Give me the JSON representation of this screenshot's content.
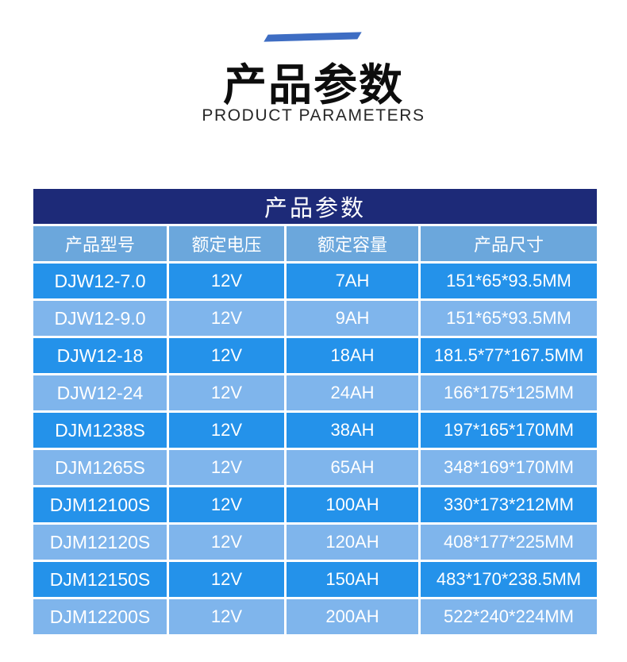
{
  "header": {
    "title": "产品参数",
    "subtitle": "PRODUCT PARAMETERS"
  },
  "table": {
    "title": "产品参数",
    "columns": [
      "产品型号",
      "额定电压",
      "额定容量",
      "产品尺寸"
    ],
    "rows": [
      [
        "DJW12-7.0",
        "12V",
        "7AH",
        "151*65*93.5MM"
      ],
      [
        "DJW12-9.0",
        "12V",
        "9AH",
        "151*65*93.5MM"
      ],
      [
        "DJW12-18",
        "12V",
        "18AH",
        "181.5*77*167.5MM"
      ],
      [
        "DJW12-24",
        "12V",
        "24AH",
        "166*175*125MM"
      ],
      [
        "DJM1238S",
        "12V",
        "38AH",
        "197*165*170MM"
      ],
      [
        "DJM1265S",
        "12V",
        "65AH",
        "348*169*170MM"
      ],
      [
        "DJM12100S",
        "12V",
        "100AH",
        "330*173*212MM"
      ],
      [
        "DJM12120S",
        "12V",
        "120AH",
        "408*177*225MM"
      ],
      [
        "DJM12150S",
        "12V",
        "150AH",
        "483*170*238.5MM"
      ],
      [
        "DJM12200S",
        "12V",
        "200AH",
        "522*240*224MM"
      ]
    ]
  },
  "colors": {
    "accent_line": "#3e6dc3",
    "table_title_navy": "#1d2a78",
    "column_header_blue": "#6ba7dc",
    "row_dark_blue": "#2492ea",
    "row_light_blue": "#7fb5ec",
    "cell_text": "#ffffff",
    "title_text": "#0d0d0d"
  }
}
